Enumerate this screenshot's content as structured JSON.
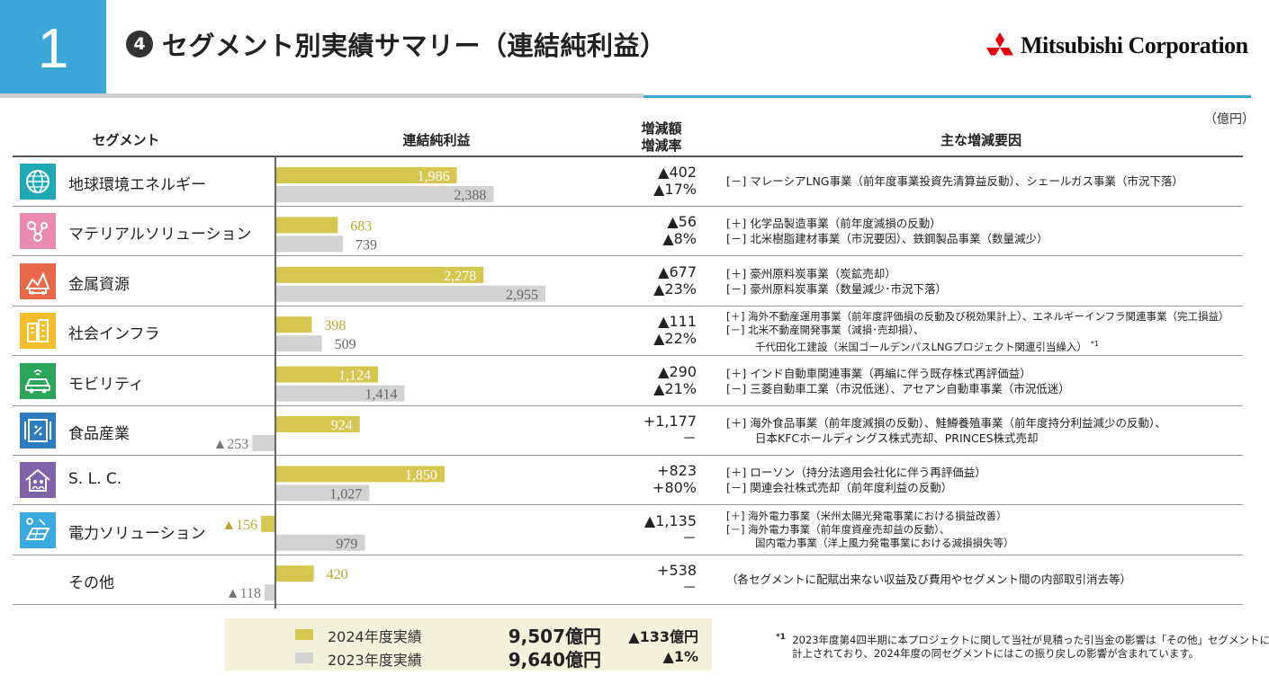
{
  "header": {
    "page_number": "1",
    "circle_number": "4",
    "title": "セグメント別実績サマリー（連結純利益）",
    "logo_text": "Mitsubishi Corporation",
    "unit": "（億円）"
  },
  "columns": {
    "segment": "セグメント",
    "profit": "連結純利益",
    "change_line1": "増減額",
    "change_line2": "増減率",
    "factors": "主な増減要因"
  },
  "colors": {
    "fy2024": "#d4c64f",
    "fy2023": "#d2d2d2",
    "label2024_outside": "#b9a931",
    "label_gray": "#777777"
  },
  "chart_data": {
    "type": "bar",
    "orientation": "horizontal",
    "categories": [
      "地球環境エネルギー",
      "マテリアルソリューション",
      "金属資源",
      "社会インフラ",
      "モビリティ",
      "食品産業",
      "S. L. C.",
      "電力ソリューション",
      "その他"
    ],
    "series": [
      {
        "name": "2024年度実績",
        "values": [
          1986,
          683,
          2278,
          398,
          1124,
          924,
          1850,
          -156,
          420
        ]
      },
      {
        "name": "2023年度実績",
        "values": [
          2388,
          739,
          2955,
          509,
          1414,
          -253,
          1027,
          979,
          -118
        ]
      }
    ],
    "value_labels_2024": [
      "1,986",
      "683",
      "2,278",
      "398",
      "1,124",
      "924",
      "1,850",
      "▲156",
      "420"
    ],
    "value_labels_2023": [
      "2,388",
      "739",
      "2,955",
      "509",
      "1,414",
      "▲253",
      "1,027",
      "979",
      "▲118"
    ],
    "grid": false
  },
  "rows": [
    {
      "name": "地球環境エネルギー",
      "icon": "globe-icon",
      "icon_color": "#1fa9b5",
      "change_amount": "▲402",
      "change_rate": "▲17%",
      "factors": [
        "[－] マレーシアLNG事業（前年度事業投資先清算益反動）、シェールガス事業（市況下落）"
      ]
    },
    {
      "name": "マテリアルソリューション",
      "icon": "molecule-icon",
      "icon_color": "#e98bb0",
      "change_amount": "▲56",
      "change_rate": "▲8%",
      "factors": [
        "[＋] 化学品製造事業（前年度減損の反動）",
        "[－] 北米樹脂建材事業（市況要因）、鉄鋼製品事業（数量減少）"
      ]
    },
    {
      "name": "金属資源",
      "icon": "mining-icon",
      "icon_color": "#e8694a",
      "change_amount": "▲677",
      "change_rate": "▲23%",
      "factors": [
        "[＋] 豪州原料炭事業（炭鉱売却）",
        "[－] 豪州原料炭事業（数量減少･市況下落）"
      ]
    },
    {
      "name": "社会インフラ",
      "icon": "building-icon",
      "icon_color": "#f2be2a",
      "change_amount": "▲111",
      "change_rate": "▲22%",
      "factors": [
        "[＋] 海外不動産運用事業（前年度評価損の反動及び税効果計上）、エネルギーインフラ関連事業（完工損益）",
        "[－] 北米不動産開発事業（減損･売却損）、",
        "千代田化工建設（米国ゴールデンパスLNGプロジェクト関連引当繰入）",
        "*1"
      ]
    },
    {
      "name": "モビリティ",
      "icon": "car-icon",
      "icon_color": "#2aa55a",
      "change_amount": "▲290",
      "change_rate": "▲21%",
      "factors": [
        "[＋] インド自動車関連事業（再編に伴う既存株式再評価益）",
        "[－] 三菱自動車工業（市況低迷）、アセアン自動車事業（市況低迷）"
      ]
    },
    {
      "name": "食品産業",
      "icon": "food-icon",
      "icon_color": "#2e7bbf",
      "change_amount": "+1,177",
      "change_rate": "－",
      "factors": [
        "[＋] 海外食品事業（前年度減損の反動）、鮭鱒養殖事業（前年度持分利益減少の反動）、",
        "日本KFCホールディングス株式売却、PRINCES株式売却"
      ]
    },
    {
      "name": "S. L. C.",
      "icon": "house-people-icon",
      "icon_color": "#7e63a8",
      "change_amount": "+823",
      "change_rate": "+80%",
      "factors": [
        "[＋] ローソン（持分法適用会社化に伴う再評価益）",
        "[－] 関連会社株式売却（前年度利益の反動）"
      ]
    },
    {
      "name": "電力ソリューション",
      "icon": "solar-icon",
      "icon_color": "#39a9de",
      "change_amount": "▲1,135",
      "change_rate": "－",
      "factors": [
        "[＋] 海外電力事業（米州太陽光発電事業における損益改善）",
        "[－] 海外電力事業（前年度資産売却益の反動）、",
        "国内電力事業（洋上風力発電事業における減損損失等）"
      ]
    },
    {
      "name": "その他",
      "icon": "",
      "icon_color": "",
      "change_amount": "+538",
      "change_rate": "－",
      "factors": [
        "（各セグメントに配賦出来ない収益及び費用やセグメント間の内部取引消去等）"
      ]
    }
  ],
  "legend": {
    "fy2024_label": "2024年度実績",
    "fy2024_total": "9,507億円",
    "fy2023_label": "2023年度実績",
    "fy2023_total": "9,640億円",
    "diff_amount": "▲133億円",
    "diff_rate": "▲1%"
  },
  "footnote": {
    "mark": "*1",
    "line1": "2023年度第4四半期に本プロジェクトに関して当社が見積った引当金の影響は「その他」セグメントに",
    "line2": "計上されており、2024年度の同セグメントにはこの振り戻しの影響が含まれています。"
  }
}
